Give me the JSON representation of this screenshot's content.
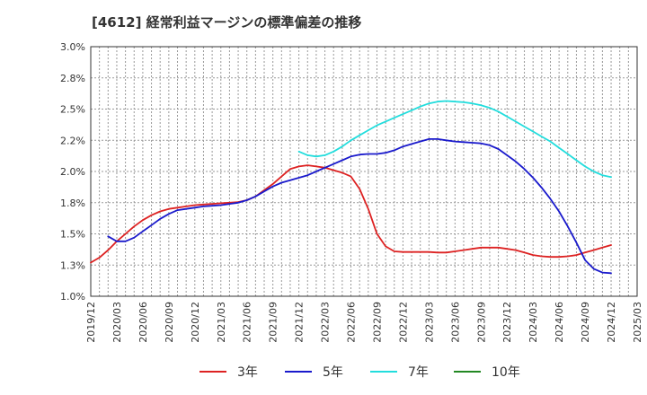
{
  "title": "[4612]  経常利益マージンの標準偏差の推移",
  "chart_data": {
    "type": "line",
    "title": "[4612]  経常利益マージンの標準偏差の推移",
    "ylim": [
      1.0,
      3.0
    ],
    "y_ticks": [
      1.0,
      1.25,
      1.5,
      1.75,
      2.0,
      2.25,
      2.5,
      2.75,
      3.0
    ],
    "y_tick_labels": [
      "1.0%",
      "1.3%",
      "1.5%",
      "1.8%",
      "2.0%",
      "2.2%",
      "2.5%",
      "2.8%",
      "3.0%"
    ],
    "x_tick_labels": [
      "2019/12",
      "2020/03",
      "2020/06",
      "2020/09",
      "2020/12",
      "2021/03",
      "2021/06",
      "2021/09",
      "2021/12",
      "2022/03",
      "2022/06",
      "2022/09",
      "2022/12",
      "2023/03",
      "2023/06",
      "2023/09",
      "2023/12",
      "2024/03",
      "2024/06",
      "2024/09",
      "2024/12",
      "2025/03"
    ],
    "grid": true,
    "legend_position": "bottom",
    "series": [
      {
        "name": "3年",
        "color": "#dd2222",
        "x": [
          "2019/12",
          "2020/01",
          "2020/02",
          "2020/03",
          "2020/04",
          "2020/05",
          "2020/06",
          "2020/07",
          "2020/08",
          "2020/09",
          "2020/10",
          "2020/11",
          "2020/12",
          "2021/01",
          "2021/02",
          "2021/03",
          "2021/04",
          "2021/05",
          "2021/06",
          "2021/07",
          "2021/08",
          "2021/09",
          "2021/10",
          "2021/11",
          "2021/12",
          "2022/01",
          "2022/02",
          "2022/03",
          "2022/04",
          "2022/05",
          "2022/06",
          "2022/07",
          "2022/08",
          "2022/09",
          "2022/10",
          "2022/11",
          "2022/12",
          "2023/01",
          "2023/02",
          "2023/03",
          "2023/04",
          "2023/05",
          "2023/06",
          "2023/07",
          "2023/08",
          "2023/09",
          "2023/10",
          "2023/11",
          "2023/12",
          "2024/01",
          "2024/02",
          "2024/03",
          "2024/04",
          "2024/05",
          "2024/06",
          "2024/07",
          "2024/08",
          "2024/09",
          "2024/10",
          "2024/11",
          "2024/12"
        ],
        "values": [
          1.27,
          1.31,
          1.37,
          1.44,
          1.5,
          1.56,
          1.61,
          1.65,
          1.68,
          1.7,
          1.71,
          1.72,
          1.73,
          1.735,
          1.74,
          1.745,
          1.75,
          1.755,
          1.77,
          1.8,
          1.85,
          1.9,
          1.96,
          2.02,
          2.04,
          2.05,
          2.04,
          2.03,
          2.01,
          1.99,
          1.96,
          1.86,
          1.7,
          1.5,
          1.4,
          1.36,
          1.355,
          1.355,
          1.355,
          1.355,
          1.35,
          1.35,
          1.36,
          1.37,
          1.38,
          1.39,
          1.39,
          1.39,
          1.38,
          1.37,
          1.35,
          1.33,
          1.32,
          1.315,
          1.315,
          1.32,
          1.33,
          1.35,
          1.37,
          1.39,
          1.41
        ]
      },
      {
        "name": "5年",
        "color": "#1a1acc",
        "x": [
          "2020/02",
          "2020/03",
          "2020/04",
          "2020/05",
          "2020/06",
          "2020/07",
          "2020/08",
          "2020/09",
          "2020/10",
          "2020/11",
          "2020/12",
          "2021/01",
          "2021/02",
          "2021/03",
          "2021/04",
          "2021/05",
          "2021/06",
          "2021/07",
          "2021/08",
          "2021/09",
          "2021/10",
          "2021/11",
          "2021/12",
          "2022/01",
          "2022/02",
          "2022/03",
          "2022/04",
          "2022/05",
          "2022/06",
          "2022/07",
          "2022/08",
          "2022/09",
          "2022/10",
          "2022/11",
          "2022/12",
          "2023/01",
          "2023/02",
          "2023/03",
          "2023/04",
          "2023/05",
          "2023/06",
          "2023/07",
          "2023/08",
          "2023/09",
          "2023/10",
          "2023/11",
          "2023/12",
          "2024/01",
          "2024/02",
          "2024/03",
          "2024/04",
          "2024/05",
          "2024/06",
          "2024/07",
          "2024/08",
          "2024/09",
          "2024/10",
          "2024/11",
          "2024/12"
        ],
        "values": [
          1.48,
          1.44,
          1.44,
          1.47,
          1.52,
          1.57,
          1.62,
          1.66,
          1.69,
          1.7,
          1.71,
          1.72,
          1.725,
          1.73,
          1.74,
          1.75,
          1.77,
          1.8,
          1.84,
          1.88,
          1.91,
          1.93,
          1.95,
          1.97,
          2.0,
          2.03,
          2.06,
          2.09,
          2.12,
          2.135,
          2.14,
          2.14,
          2.15,
          2.17,
          2.2,
          2.22,
          2.24,
          2.26,
          2.26,
          2.25,
          2.24,
          2.235,
          2.23,
          2.225,
          2.21,
          2.18,
          2.13,
          2.08,
          2.02,
          1.95,
          1.87,
          1.78,
          1.68,
          1.56,
          1.43,
          1.29,
          1.22,
          1.19,
          1.185
        ]
      },
      {
        "name": "7年",
        "color": "#22dddd",
        "x": [
          "2021/12",
          "2022/01",
          "2022/02",
          "2022/03",
          "2022/04",
          "2022/05",
          "2022/06",
          "2022/07",
          "2022/08",
          "2022/09",
          "2022/10",
          "2022/11",
          "2022/12",
          "2023/01",
          "2023/02",
          "2023/03",
          "2023/04",
          "2023/05",
          "2023/06",
          "2023/07",
          "2023/08",
          "2023/09",
          "2023/10",
          "2023/11",
          "2023/12",
          "2024/01",
          "2024/02",
          "2024/03",
          "2024/04",
          "2024/05",
          "2024/06",
          "2024/07",
          "2024/08",
          "2024/09",
          "2024/10",
          "2024/11",
          "2024/12"
        ],
        "values": [
          2.16,
          2.13,
          2.12,
          2.13,
          2.16,
          2.2,
          2.25,
          2.29,
          2.33,
          2.37,
          2.4,
          2.43,
          2.46,
          2.49,
          2.52,
          2.545,
          2.56,
          2.565,
          2.56,
          2.555,
          2.545,
          2.53,
          2.51,
          2.48,
          2.44,
          2.4,
          2.36,
          2.32,
          2.28,
          2.24,
          2.19,
          2.14,
          2.09,
          2.04,
          2.0,
          1.97,
          1.955
        ]
      },
      {
        "name": "10年",
        "color": "#228822",
        "x": [],
        "values": []
      }
    ]
  }
}
